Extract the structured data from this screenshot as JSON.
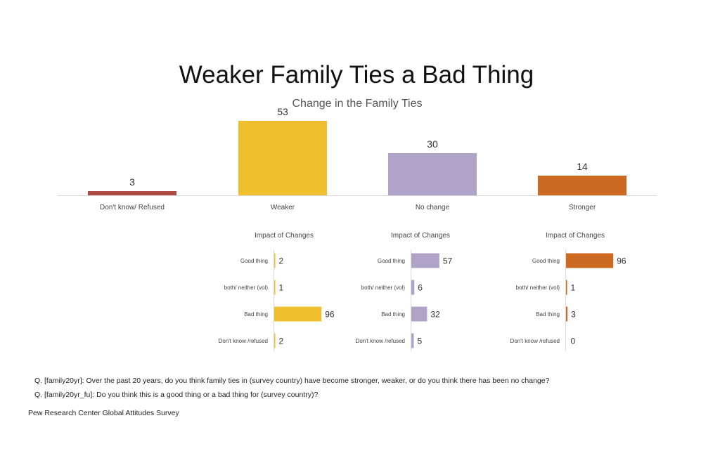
{
  "title": "Weaker Family Ties a Bad Thing",
  "chart_data": [
    {
      "type": "bar",
      "title": "Change in the Family Ties",
      "categories": [
        "Don't know/ Refused",
        "Weaker",
        "No change",
        "Stronger"
      ],
      "values": [
        3,
        53,
        30,
        14
      ],
      "colors": [
        "#b04a45",
        "#efbf2f",
        "#b0a3c8",
        "#cd6a22"
      ],
      "ylim": [
        0,
        60
      ],
      "grid": false,
      "legend": "none"
    },
    {
      "type": "bar",
      "orientation": "horizontal",
      "title": "Impact of Changes",
      "categories": [
        "Good thing",
        "both/ neither (vol)",
        "Bad thing",
        "Don't know /refused"
      ],
      "values": [
        2,
        1,
        96,
        2
      ],
      "color": "#efbf2f",
      "xlim": [
        0,
        100
      ]
    },
    {
      "type": "bar",
      "orientation": "horizontal",
      "title": "Impact of Changes",
      "categories": [
        "Good thing",
        "both/ neither (vol)",
        "Bad thing",
        "Don't know /refused"
      ],
      "values": [
        57,
        6,
        32,
        5
      ],
      "color": "#b0a3c8",
      "xlim": [
        0,
        100
      ]
    },
    {
      "type": "bar",
      "orientation": "horizontal",
      "title": "Impact of Changes",
      "categories": [
        "Good thing",
        "both/ neither (vol)",
        "Bad thing",
        "Don't know /refused"
      ],
      "values": [
        96,
        1,
        3,
        0
      ],
      "color": "#cd6a22",
      "xlim": [
        0,
        100
      ]
    }
  ],
  "notes": {
    "q1": "Q. [family20yr]: Over the past 20 years, do you think family ties in (survey country) have become stronger, weaker, or do you think there has been no change?",
    "q2": "Q. [family20yr_fu]: Do you think this is a good thing or a bad thing for (survey country)?",
    "source": "Pew Research Center Global Attitudes Survey"
  }
}
